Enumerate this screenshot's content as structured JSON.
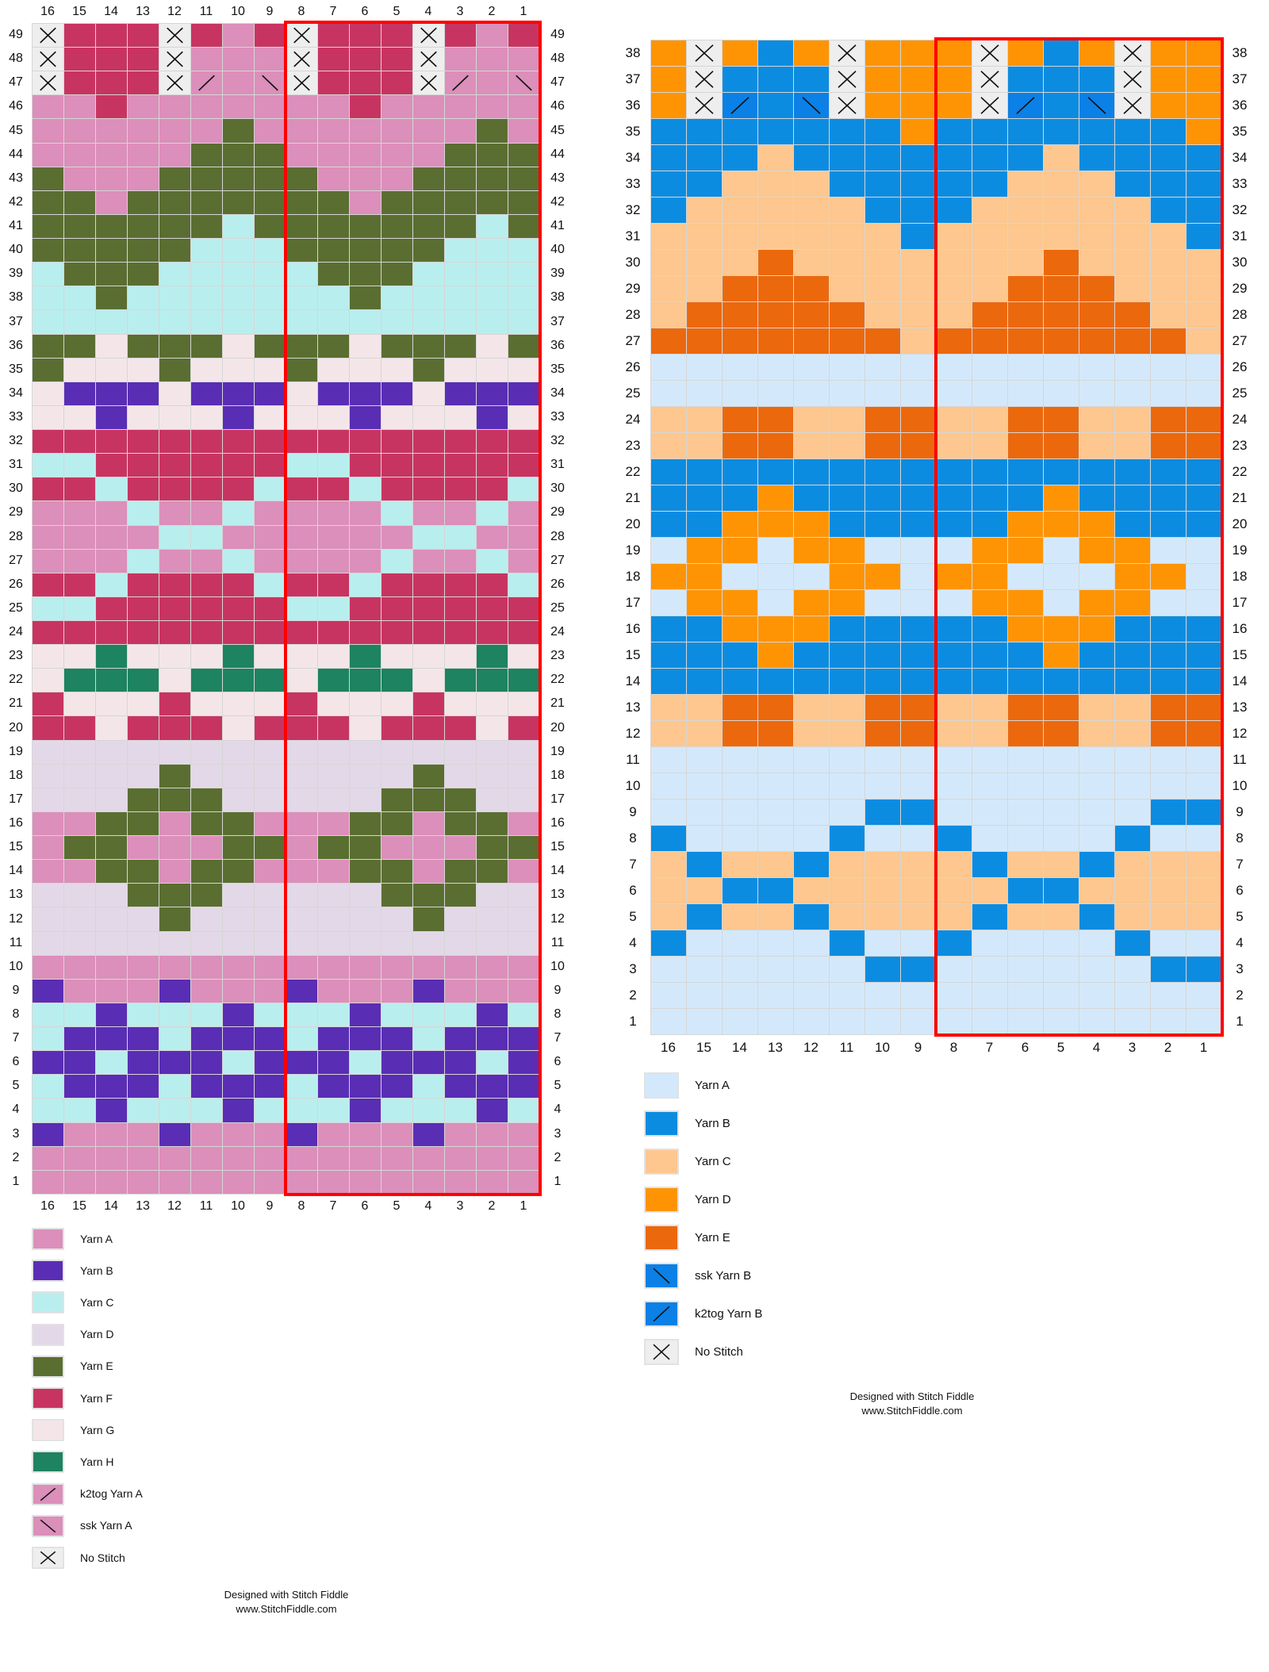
{
  "left_chart": {
    "columns": 16,
    "rows_top_to_bottom": [
      "XFFFXFAFXFFFXFAF",
      "XFFFXAAAXFFFXAAA",
      "XFFFXkAsXFFFXkAs",
      "AAFAAAAAAAFAAAAA",
      "AAAAAAEAAAAAAAEA",
      "AAAAAEEEAAAAAEEE",
      "EAAAEEEEEAAAEEEE",
      "EEAEEEEEEEAEEEEE",
      "EEEEEECEEEEEEECE",
      "EEEEECCCEEEEECCC",
      "CEEECCCCCEEECCCC",
      "CCECCCCCCCECCCCC",
      "CCCCCCCCCCCCCCCC",
      "EEGEEEGEEEGEEEGE",
      "EGGGEGGGEGGGEGGG",
      "GBBBGBBBGBBBGBBB",
      "GGBGGGBGGGBGGGBG",
      "FFFFFFFFFFFFFFFF",
      "CCFFFFFFCCFFFFFF",
      "FFCFFFFCFFCFFFFC",
      "AAACAACAAAACAACA",
      "AAAACCAAAAAACCAA",
      "AAACAACAAAACAACA",
      "FFCFFFFCFFCFFFFC",
      "CCFFFFFFCCFFFFFF",
      "FFFFFFFFFFFFFFFF",
      "GGHGGGHGGGHGGGHG",
      "GHHHGHHHGHHHGHHH",
      "FGGGFGGGFGGGFGGG",
      "FFGFFFGFFFGFFFGF",
      "DDDDDDDDDDDDDDDD",
      "DDDDEDDDDDDDEDDD",
      "DDDEEEDDDDDEEEDD",
      "AAEEAEEAAAEEAEEA",
      "AEEAAAEEAEEAAAEE",
      "AAEEAEEAAAEEAEEA",
      "DDDEEEDDDDDEEEDD",
      "DDDDEDDDDDDDEDDD",
      "DDDDDDDDDDDDDDDD",
      "AAAAAAAAAAAAAAAA",
      "BAAABAAABAAABAAA",
      "CCBCCCBCCCBCCCBC",
      "CBBBCBBBCBBBCBBB",
      "BBCBBBCBBBCBBBCB",
      "CBBBCBBBCBBBCBBB",
      "CCBCCCBCCCBCCCBC",
      "BAAABAAABAAABAAA",
      "AAAAAAAAAAAAAAAA",
      "AAAAAAAAAAAAAAAA"
    ],
    "highlight_columns": [
      8,
      1
    ],
    "legend": [
      {
        "code": "A",
        "label": "Yarn A",
        "color": "#db8fba"
      },
      {
        "code": "B",
        "label": "Yarn B",
        "color": "#5a2db5"
      },
      {
        "code": "C",
        "label": "Yarn C",
        "color": "#b9eeee"
      },
      {
        "code": "D",
        "label": "Yarn D",
        "color": "#e3d8e8"
      },
      {
        "code": "E",
        "label": "Yarn E",
        "color": "#5a6e31"
      },
      {
        "code": "F",
        "label": "Yarn F",
        "color": "#c83462"
      },
      {
        "code": "G",
        "label": "Yarn G",
        "color": "#f4e6e8"
      },
      {
        "code": "H",
        "label": "Yarn H",
        "color": "#1d8360"
      },
      {
        "code": "k",
        "label": "k2tog Yarn A",
        "color": "#db8fba",
        "symbol": "k2tog-icon"
      },
      {
        "code": "s",
        "label": "ssk Yarn A",
        "color": "#db8fba",
        "symbol": "ssk-icon"
      },
      {
        "code": "X",
        "label": "No Stitch",
        "color": "#eeeeee",
        "symbol": "no-stitch-icon"
      }
    ],
    "footer": {
      "line1": "Designed with Stitch Fiddle",
      "line2": "www.StitchFiddle.com"
    }
  },
  "right_chart": {
    "columns": 16,
    "rows_top_to_bottom": [
      "DXDBDXDDDXDBDXDD",
      "DXBBBXDDDXBBBXDD",
      "DXkBsXDDDXkBsXDD",
      "BBBBBBBDBBBBBBBD",
      "BBBCBBBBBBBCBBBB",
      "BBCCCBBBBBCCCBBB",
      "BCCCCCBBBCCCCCBB",
      "CCCCCCCBCCCCCCCB",
      "CCCECCCCCCCECCCC",
      "CCEEECCCCCEEECCC",
      "CEEEEECCCEEEEECC",
      "EEEEEEECEEEEEEEC",
      "AAAAAAAAAAAAAAAA",
      "AAAAAAAAAAAAAAAA",
      "CCEECCEECCEECCEE",
      "CCEECCEECCEECCEE",
      "BBBBBBBBBBBBBBBB",
      "BBBDBBBBBBBDBBBB",
      "BBDDDBBBBBDDDBBB",
      "ADDADDAAADDADDAA",
      "DDAAADDADDAAADDA",
      "ADDADDAAADDADDAA",
      "BBDDDBBBBBDDDBBB",
      "BBBDBBBBBBBDBBBB",
      "BBBBBBBBBBBBBBBB",
      "CCEECCEECCEECCEE",
      "CCEECCEECCEECCEE",
      "AAAAAAAAAAAAAAAA",
      "AAAAAAAAAAAAAAAA",
      "AAAAAABBAAAAAABB",
      "BAAAABAABAAAABAA",
      "CBCCBCCCCBCCBCCC",
      "CCBBCCCCCCBBCCCC",
      "CBCCBCCCCBCCBCCC",
      "BAAAABAABAAAABAA",
      "AAAAAABBAAAAAABB",
      "AAAAAAAAAAAAAAAA",
      "AAAAAAAAAAAAAAAA"
    ],
    "highlight_columns": [
      8,
      1
    ],
    "legend": [
      {
        "code": "A",
        "label": "Yarn A",
        "color": "#d3e9fb"
      },
      {
        "code": "B",
        "label": "Yarn B",
        "color": "#0c8ce0"
      },
      {
        "code": "C",
        "label": "Yarn C",
        "color": "#fdc78f"
      },
      {
        "code": "D",
        "label": "Yarn D",
        "color": "#fe9403"
      },
      {
        "code": "E",
        "label": "Yarn E",
        "color": "#ec680c"
      },
      {
        "code": "s",
        "label": "ssk Yarn B",
        "color": "#0b80e6",
        "symbol": "ssk-icon"
      },
      {
        "code": "k",
        "label": "k2tog Yarn B",
        "color": "#0b80e6",
        "symbol": "k2tog-icon"
      },
      {
        "code": "X",
        "label": "No Stitch",
        "color": "#eeeeee",
        "symbol": "no-stitch-icon"
      }
    ],
    "footer": {
      "line1": "Designed with Stitch Fiddle",
      "line2": "www.StitchFiddle.com"
    }
  }
}
